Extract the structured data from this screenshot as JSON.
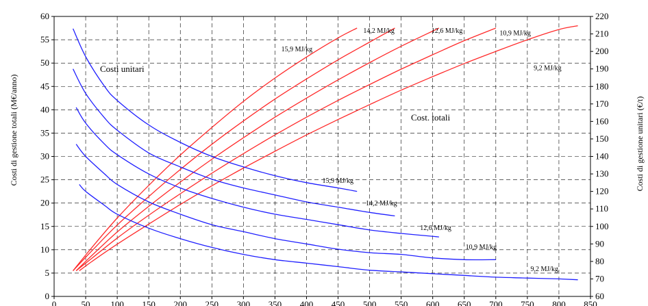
{
  "chart_data": {
    "type": "line",
    "title": "",
    "xlabel": "",
    "ylabel_left": "Costi di gestione totali (M€/anno)",
    "ylabel_right": "Costi di gestione unitari (€/t)",
    "xlim": [
      0,
      850
    ],
    "ylim_left": [
      0,
      60
    ],
    "ylim_right": [
      60,
      220
    ],
    "x_ticks": [
      "0",
      "50",
      "100",
      "150",
      "200",
      "250",
      "300",
      "350",
      "400",
      "450",
      "500",
      "550",
      "600",
      "650",
      "700",
      "750",
      "800",
      "850"
    ],
    "y_left_ticks": [
      "0",
      "5",
      "10",
      "15",
      "20",
      "25",
      "30",
      "35",
      "40",
      "45",
      "50",
      "55",
      "60"
    ],
    "y_right_ticks": [
      "60",
      "70",
      "80",
      "90",
      "100",
      "110",
      "120",
      "130",
      "140",
      "150",
      "160",
      "170",
      "180",
      "190",
      "200",
      "210",
      "220"
    ],
    "grid": "dashed",
    "group_labels": {
      "unit": "Costi unitari",
      "total": "Cost. totali"
    },
    "total_series": [
      {
        "name": "15,9 MJ/kg",
        "axis": "left",
        "color": "#ff2a2a",
        "x": [
          30,
          60,
          100,
          150,
          200,
          250,
          300,
          350,
          400,
          450,
          480
        ],
        "y": [
          5.5,
          10.5,
          16.8,
          23.8,
          30.3,
          36.2,
          41.8,
          46.8,
          51.3,
          55.4,
          57.5
        ]
      },
      {
        "name": "14,2 MJ/kg",
        "axis": "left",
        "color": "#ff2a2a",
        "x": [
          30,
          60,
          100,
          150,
          200,
          250,
          300,
          350,
          400,
          450,
          500,
          540
        ],
        "y": [
          5.5,
          9.8,
          15.3,
          21.4,
          27.2,
          32.6,
          37.6,
          42.3,
          46.6,
          50.7,
          54.5,
          57.5
        ]
      },
      {
        "name": "12,6 MJ/kg",
        "axis": "left",
        "color": "#ff2a2a",
        "x": [
          35,
          60,
          100,
          150,
          200,
          250,
          300,
          350,
          400,
          450,
          500,
          550,
          610
        ],
        "y": [
          5.5,
          8.8,
          13.8,
          19.3,
          24.5,
          29.4,
          34.0,
          38.4,
          42.5,
          46.4,
          50.1,
          53.6,
          57.5
        ]
      },
      {
        "name": "10,9 MJ/kg",
        "axis": "left",
        "color": "#ff2a2a",
        "x": [
          35,
          60,
          100,
          150,
          200,
          250,
          300,
          350,
          400,
          450,
          500,
          550,
          600,
          650,
          700
        ],
        "y": [
          5.5,
          8.2,
          12.5,
          17.4,
          22.0,
          26.4,
          30.6,
          34.6,
          38.4,
          42.0,
          45.4,
          48.7,
          51.8,
          54.8,
          57.5
        ]
      },
      {
        "name": "9,2 MJ/kg",
        "axis": "left",
        "color": "#ff2a2a",
        "x": [
          40,
          60,
          100,
          150,
          200,
          250,
          300,
          350,
          400,
          450,
          500,
          550,
          600,
          650,
          700,
          750,
          800,
          830
        ],
        "y": [
          5.5,
          7.5,
          11.2,
          15.5,
          19.7,
          23.7,
          27.5,
          31.1,
          34.6,
          37.9,
          41.1,
          44.2,
          47.1,
          49.9,
          52.5,
          55.0,
          57.2,
          58.0
        ]
      }
    ],
    "unit_series": [
      {
        "name": "15,9 MJ/kg",
        "axis": "right",
        "color": "#1f1fff",
        "x": [
          30,
          50,
          80,
          100,
          150,
          200,
          250,
          300,
          350,
          400,
          450,
          480
        ],
        "y": [
          213,
          197,
          180,
          172,
          158,
          148,
          140,
          134,
          129,
          125,
          122,
          120
        ]
      },
      {
        "name": "14,2 MJ/kg",
        "axis": "right",
        "color": "#1f1fff",
        "x": [
          30,
          50,
          80,
          100,
          150,
          200,
          250,
          300,
          350,
          400,
          450,
          500,
          540
        ],
        "y": [
          190,
          176,
          162,
          155,
          142,
          134,
          127,
          122,
          118,
          114,
          111,
          108,
          106
        ]
      },
      {
        "name": "12,6 MJ/kg",
        "axis": "right",
        "color": "#1f1fff",
        "x": [
          35,
          50,
          80,
          100,
          150,
          200,
          250,
          300,
          350,
          400,
          450,
          500,
          550,
          610
        ],
        "y": [
          168,
          159,
          147,
          141,
          130,
          122,
          116,
          111,
          107,
          104,
          101,
          98,
          96,
          94
        ]
      },
      {
        "name": "10,9 MJ/kg",
        "axis": "right",
        "color": "#1f1fff",
        "x": [
          35,
          50,
          80,
          100,
          150,
          200,
          250,
          300,
          350,
          400,
          450,
          500,
          550,
          600,
          650,
          700
        ],
        "y": [
          147,
          140,
          130,
          124,
          114,
          107,
          101,
          97,
          93,
          90,
          87,
          85,
          84,
          82,
          81,
          81
        ]
      },
      {
        "name": "9,2 MJ/kg",
        "axis": "right",
        "color": "#1f1fff",
        "x": [
          40,
          50,
          80,
          100,
          150,
          200,
          250,
          300,
          350,
          400,
          450,
          500,
          550,
          600,
          650,
          700,
          750,
          800,
          830
        ],
        "y": [
          124,
          120,
          112,
          107,
          99,
          93,
          88,
          84,
          81,
          79,
          77,
          75,
          74,
          73,
          72,
          71,
          70.5,
          70,
          69.5
        ]
      }
    ],
    "series_labels_total": [
      {
        "text": "15,9 MJ/kg",
        "x": 360,
        "y": 52.5
      },
      {
        "text": "14,2 MJ/kg",
        "x": 490,
        "y": 56.5
      },
      {
        "text": "12,6 MJ/kg",
        "x": 598,
        "y": 56.5
      },
      {
        "text": "10,9 MJ/kg",
        "x": 706,
        "y": 56.0
      },
      {
        "text": "9,2 MJ/kg",
        "x": 760,
        "y": 48.5
      }
    ],
    "series_labels_unit": [
      {
        "text": "15,9 MJ/kg",
        "x": 425,
        "y": 125
      },
      {
        "text": "14,2 MJ/kg",
        "x": 494,
        "y": 112
      },
      {
        "text": "12,6 MJ/kg",
        "x": 580,
        "y": 98
      },
      {
        "text": "10,9 MJ/kg",
        "x": 652,
        "y": 87
      },
      {
        "text": "9,2 MJ/kg",
        "x": 755,
        "y": 74.5
      }
    ]
  }
}
